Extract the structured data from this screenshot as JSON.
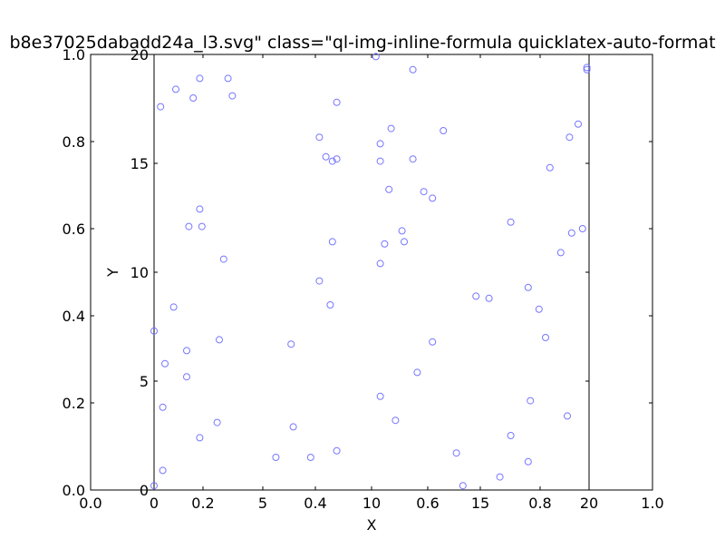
{
  "chart_data": {
    "type": "scatter",
    "title": "b8e37025dabadd24a_l3.svg\" class=\"ql-img-inline-formula quicklatex-auto-format",
    "xlabel": "X",
    "ylabel": "Y",
    "xlim": [
      0,
      20
    ],
    "ylim": [
      0,
      20
    ],
    "grid": false,
    "background_axes": {
      "xticks": [
        "0.0",
        "0.2",
        "0.4",
        "0.6",
        "0.8",
        "1.0"
      ],
      "yticks": [
        "0.0",
        "0.2",
        "0.4",
        "0.6",
        "0.8",
        "1.0"
      ]
    },
    "x_ticks": [
      {
        "value": 0,
        "label": "0"
      },
      {
        "value": 5,
        "label": "5"
      },
      {
        "value": 10,
        "label": "10"
      },
      {
        "value": 15,
        "label": "15"
      },
      {
        "value": 20,
        "label": "20"
      }
    ],
    "y_ticks": [
      {
        "value": 0,
        "label": "0"
      },
      {
        "value": 5,
        "label": "5"
      },
      {
        "value": 10,
        "label": "10"
      },
      {
        "value": 15,
        "label": "15"
      },
      {
        "value": 20,
        "label": "20"
      }
    ],
    "marker": {
      "shape": "open-circle",
      "color": "#7777ff"
    },
    "points": [
      {
        "x": 3.4,
        "y": 18.9
      },
      {
        "x": 1.0,
        "y": 18.4
      },
      {
        "x": 2.1,
        "y": 18.9
      },
      {
        "x": 3.6,
        "y": 18.1
      },
      {
        "x": 1.8,
        "y": 18.0
      },
      {
        "x": 0.3,
        "y": 17.6
      },
      {
        "x": 8.4,
        "y": 17.8
      },
      {
        "x": 10.2,
        "y": 19.9
      },
      {
        "x": 11.9,
        "y": 19.3
      },
      {
        "x": 19.9,
        "y": 19.4
      },
      {
        "x": 19.9,
        "y": 19.3
      },
      {
        "x": 19.5,
        "y": 16.8
      },
      {
        "x": 19.1,
        "y": 16.2
      },
      {
        "x": 18.2,
        "y": 14.8
      },
      {
        "x": 13.3,
        "y": 16.5
      },
      {
        "x": 10.9,
        "y": 16.6
      },
      {
        "x": 10.4,
        "y": 15.9
      },
      {
        "x": 7.6,
        "y": 16.2
      },
      {
        "x": 7.9,
        "y": 15.3
      },
      {
        "x": 8.2,
        "y": 15.1
      },
      {
        "x": 8.4,
        "y": 15.2
      },
      {
        "x": 10.4,
        "y": 15.1
      },
      {
        "x": 11.9,
        "y": 15.2
      },
      {
        "x": 10.8,
        "y": 13.8
      },
      {
        "x": 12.4,
        "y": 13.7
      },
      {
        "x": 12.8,
        "y": 13.4
      },
      {
        "x": 2.1,
        "y": 12.9
      },
      {
        "x": 1.6,
        "y": 12.1
      },
      {
        "x": 2.2,
        "y": 12.1
      },
      {
        "x": 3.2,
        "y": 10.6
      },
      {
        "x": 8.2,
        "y": 11.4
      },
      {
        "x": 10.6,
        "y": 11.3
      },
      {
        "x": 11.4,
        "y": 11.9
      },
      {
        "x": 11.5,
        "y": 11.4
      },
      {
        "x": 16.4,
        "y": 12.3
      },
      {
        "x": 19.7,
        "y": 12.0
      },
      {
        "x": 19.2,
        "y": 11.8
      },
      {
        "x": 18.7,
        "y": 10.9
      },
      {
        "x": 10.4,
        "y": 10.4
      },
      {
        "x": 7.6,
        "y": 9.6
      },
      {
        "x": 8.1,
        "y": 8.5
      },
      {
        "x": 14.8,
        "y": 8.9
      },
      {
        "x": 15.4,
        "y": 8.8
      },
      {
        "x": 17.2,
        "y": 9.3
      },
      {
        "x": 17.7,
        "y": 8.3
      },
      {
        "x": 0.9,
        "y": 8.4
      },
      {
        "x": 0.0,
        "y": 7.3
      },
      {
        "x": 1.5,
        "y": 6.4
      },
      {
        "x": 3.0,
        "y": 6.9
      },
      {
        "x": 6.3,
        "y": 6.7
      },
      {
        "x": 12.8,
        "y": 6.8
      },
      {
        "x": 18.0,
        "y": 7.0
      },
      {
        "x": 0.5,
        "y": 5.8
      },
      {
        "x": 1.5,
        "y": 5.2
      },
      {
        "x": 12.1,
        "y": 5.4
      },
      {
        "x": 0.4,
        "y": 3.8
      },
      {
        "x": 10.4,
        "y": 4.3
      },
      {
        "x": 17.3,
        "y": 4.1
      },
      {
        "x": 11.1,
        "y": 3.2
      },
      {
        "x": 19.0,
        "y": 3.4
      },
      {
        "x": 2.9,
        "y": 3.1
      },
      {
        "x": 6.4,
        "y": 2.9
      },
      {
        "x": 2.1,
        "y": 2.4
      },
      {
        "x": 16.4,
        "y": 2.5
      },
      {
        "x": 8.4,
        "y": 1.8
      },
      {
        "x": 5.6,
        "y": 1.5
      },
      {
        "x": 7.2,
        "y": 1.5
      },
      {
        "x": 13.9,
        "y": 1.7
      },
      {
        "x": 17.2,
        "y": 1.3
      },
      {
        "x": 0.4,
        "y": 0.9
      },
      {
        "x": 15.9,
        "y": 0.6
      },
      {
        "x": 14.2,
        "y": 0.2
      },
      {
        "x": 0.0,
        "y": 0.2
      }
    ]
  }
}
